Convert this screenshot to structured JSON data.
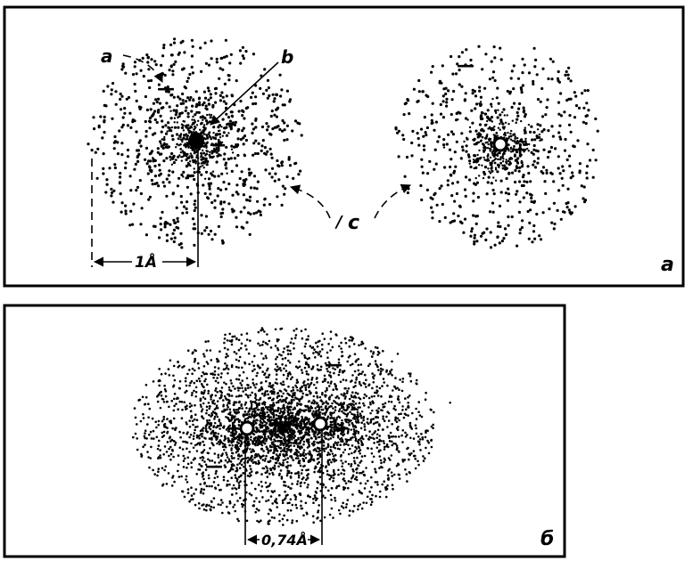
{
  "panel_a": {
    "panel_label": "a",
    "callout_a": "a",
    "callout_b": "b",
    "callout_c": "c",
    "callout_c_prefix": "/",
    "distance_label": "1Å",
    "sign_minus": "—",
    "sign_plus": "+"
  },
  "panel_b": {
    "panel_label": "б",
    "distance_label": "0,74Å",
    "sign_minus": "—",
    "sign_plus": "+"
  },
  "colors": {
    "ink": "#000000",
    "paper": "#ffffff"
  }
}
